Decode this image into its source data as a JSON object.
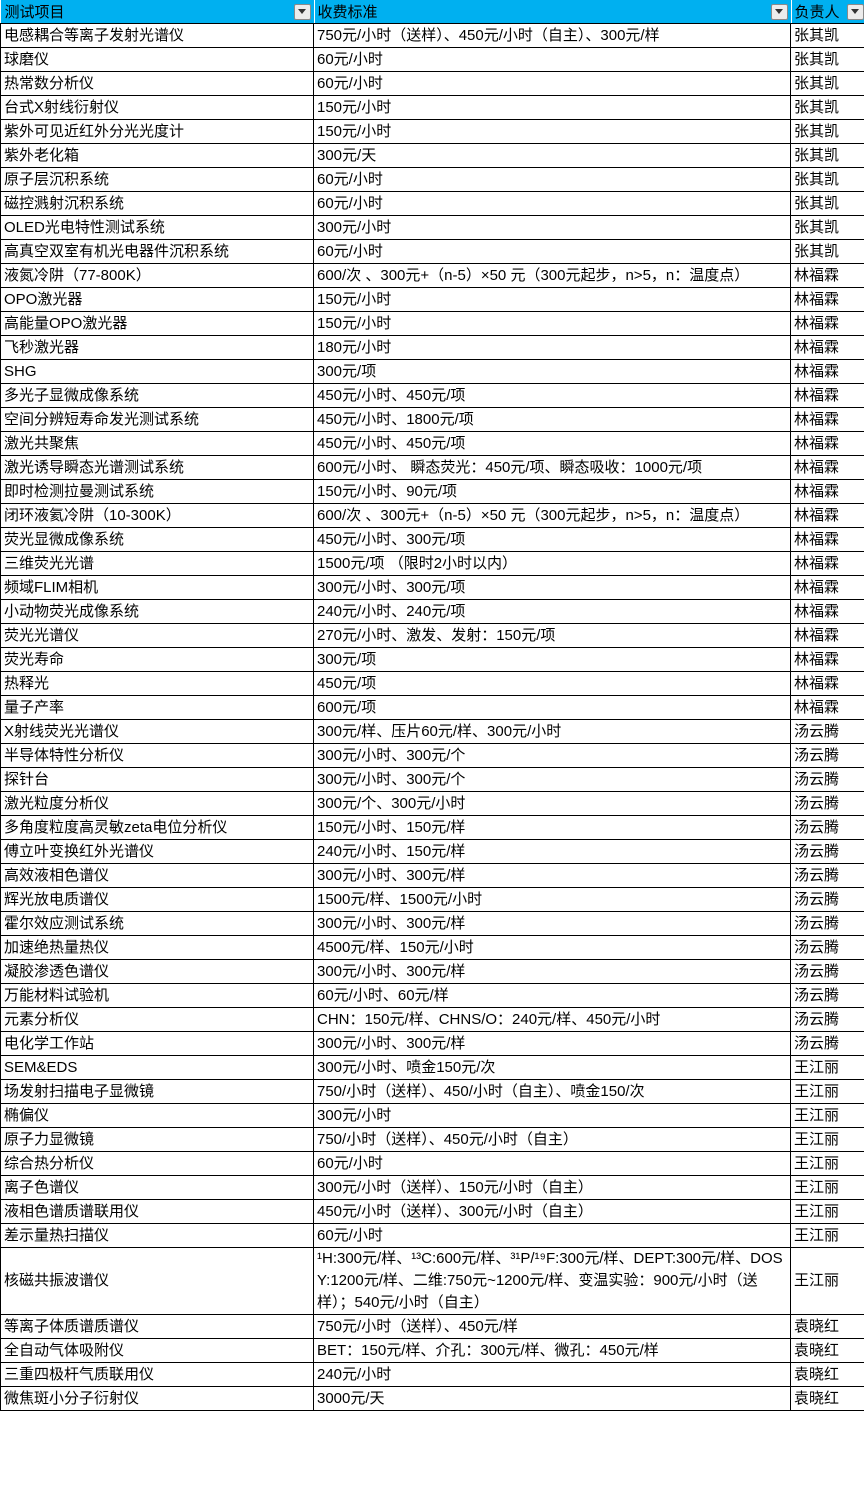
{
  "colors": {
    "header_bg": "#00B0F0",
    "grid_border": "#000000",
    "filter_button_bg": "#ECECEC",
    "filter_button_border": "#8A8A8A"
  },
  "header": {
    "columns": [
      {
        "label": "测试项目"
      },
      {
        "label": "收费标准"
      },
      {
        "label": "负责人"
      }
    ]
  },
  "table": {
    "rows": [
      {
        "item": "电感耦合等离子发射光谱仪",
        "fee": "750元/小时（送样）、450元/小时（自主）、300元/样",
        "owner": "张其凯"
      },
      {
        "item": "球磨仪",
        "fee": "60元/小时",
        "owner": "张其凯"
      },
      {
        "item": "热常数分析仪",
        "fee": "60元/小时",
        "owner": "张其凯"
      },
      {
        "item": "台式X射线衍射仪",
        "fee": "150元/小时",
        "owner": "张其凯"
      },
      {
        "item": "紫外可见近红外分光光度计",
        "fee": "150元/小时",
        "owner": "张其凯"
      },
      {
        "item": "紫外老化箱",
        "fee": "300元/天",
        "owner": "张其凯"
      },
      {
        "item": "原子层沉积系统",
        "fee": "60元/小时",
        "owner": "张其凯"
      },
      {
        "item": "磁控溅射沉积系统",
        "fee": "60元/小时",
        "owner": "张其凯"
      },
      {
        "item": "OLED光电特性测试系统",
        "fee": "300元/小时",
        "owner": "张其凯"
      },
      {
        "item": "高真空双室有机光电器件沉积系统",
        "fee": "60元/小时",
        "owner": "张其凯"
      },
      {
        "item": "液氮冷阱（77-800K）",
        "fee": "600/次 、300元+（n-5）×50 元（300元起步，n>5，n：温度点）",
        "owner": "林福霖"
      },
      {
        "item": "OPO激光器",
        "fee": "150元/小时",
        "owner": "林福霖"
      },
      {
        "item": "高能量OPO激光器",
        "fee": "150元/小时",
        "owner": "林福霖"
      },
      {
        "item": "飞秒激光器",
        "fee": "180元/小时",
        "owner": "林福霖"
      },
      {
        "item": "SHG",
        "fee": "300元/项",
        "owner": "林福霖"
      },
      {
        "item": "多光子显微成像系统",
        "fee": "450元/小时、450元/项",
        "owner": "林福霖"
      },
      {
        "item": "空间分辨短寿命发光测试系统",
        "fee": "450元/小时、1800元/项",
        "owner": "林福霖"
      },
      {
        "item": "激光共聚焦",
        "fee": "450元/小时、450元/项",
        "owner": "林福霖"
      },
      {
        "item": "激光诱导瞬态光谱测试系统",
        "fee": "600元/小时、 瞬态荧光：450元/项、瞬态吸收：1000元/项",
        "owner": "林福霖"
      },
      {
        "item": "即时检测拉曼测试系统",
        "fee": "150元/小时、90元/项",
        "owner": "林福霖"
      },
      {
        "item": "闭环液氦冷阱（10-300K）",
        "fee": "600/次 、300元+（n-5）×50 元（300元起步，n>5，n：温度点）",
        "owner": "林福霖"
      },
      {
        "item": "荧光显微成像系统",
        "fee": "450元/小时、300元/项",
        "owner": "林福霖"
      },
      {
        "item": "三维荧光光谱",
        "fee": "1500元/项 （限时2小时以内）",
        "owner": "林福霖"
      },
      {
        "item": "频域FLIM相机",
        "fee": "300元/小时、300元/项",
        "owner": "林福霖"
      },
      {
        "item": "小动物荧光成像系统",
        "fee": "240元/小时、240元/项",
        "owner": "林福霖"
      },
      {
        "item": "荧光光谱仪",
        "fee": "270元/小时、激发、发射：150元/项",
        "owner": "林福霖"
      },
      {
        "item": "荧光寿命",
        "fee": "300元/项",
        "owner": "林福霖"
      },
      {
        "item": "热释光",
        "fee": "450元/项",
        "owner": "林福霖"
      },
      {
        "item": "量子产率",
        "fee": "600元/项",
        "owner": "林福霖"
      },
      {
        "item": "X射线荧光光谱仪",
        "fee": "300元/样、压片60元/样、300元/小时",
        "owner": "汤云腾"
      },
      {
        "item": "半导体特性分析仪",
        "fee": "300元/小时、300元/个",
        "owner": "汤云腾"
      },
      {
        "item": "探针台",
        "fee": "300元/小时、300元/个",
        "owner": "汤云腾"
      },
      {
        "item": "激光粒度分析仪",
        "fee": "300元/个、300元/小时",
        "owner": "汤云腾"
      },
      {
        "item": "多角度粒度高灵敏zeta电位分析仪",
        "fee": "150元/小时、150元/样",
        "owner": "汤云腾"
      },
      {
        "item": "傅立叶变换红外光谱仪",
        "fee": "240元/小时、150元/样",
        "owner": "汤云腾"
      },
      {
        "item": "高效液相色谱仪",
        "fee": "300元/小时、300元/样",
        "owner": "汤云腾"
      },
      {
        "item": "辉光放电质谱仪",
        "fee": "1500元/样、1500元/小时",
        "owner": "汤云腾"
      },
      {
        "item": "霍尔效应测试系统",
        "fee": "300元/小时、300元/样",
        "owner": "汤云腾"
      },
      {
        "item": "加速绝热量热仪",
        "fee": "4500元/样、150元/小时",
        "owner": "汤云腾"
      },
      {
        "item": "凝胶渗透色谱仪",
        "fee": "300元/小时、300元/样",
        "owner": "汤云腾"
      },
      {
        "item": "万能材料试验机",
        "fee": "60元/小时、60元/样",
        "owner": "汤云腾"
      },
      {
        "item": "元素分析仪",
        "fee": "CHN：150元/样、CHNS/O：240元/样、450元/小时",
        "owner": "汤云腾"
      },
      {
        "item": "电化学工作站",
        "fee": "300元/小时、300元/样",
        "owner": "汤云腾"
      },
      {
        "item": "SEM&EDS",
        "fee": "300元/小时、喷金150元/次",
        "owner": "王江丽"
      },
      {
        "item": "场发射扫描电子显微镜",
        "fee": "750/小时（送样）、450/小时（自主）、喷金150/次",
        "owner": "王江丽"
      },
      {
        "item": "椭偏仪",
        "fee": "300元/小时",
        "owner": "王江丽"
      },
      {
        "item": "原子力显微镜",
        "fee": "750/小时（送样）、450元/小时（自主）",
        "owner": "王江丽"
      },
      {
        "item": "综合热分析仪",
        "fee": "60元/小时",
        "owner": "王江丽"
      },
      {
        "item": "离子色谱仪",
        "fee": "300元/小时（送样）、150元/小时（自主）",
        "owner": "王江丽"
      },
      {
        "item": "液相色谱质谱联用仪",
        "fee": "450元/小时（送样）、300元/小时（自主）",
        "owner": "王江丽"
      },
      {
        "item": "差示量热扫描仪",
        "fee": "60元/小时",
        "owner": "王江丽"
      },
      {
        "item": "核磁共振波谱仪",
        "fee": "¹H:300元/样、¹³C:600元/样、³¹P/¹⁹F:300元/样、DEPT:300元/样、DOSY:1200元/样、二维:750元~1200元/样、变温实验：900元/小时（送样）；540元/小时（自主）",
        "owner": "王江丽"
      },
      {
        "item": "等离子体质谱质谱仪",
        "fee": "750元/小时（送样）、450元/样",
        "owner": "袁晓红"
      },
      {
        "item": "全自动气体吸附仪",
        "fee": "BET：150元/样、介孔：300元/样、微孔：450元/样",
        "owner": "袁晓红"
      },
      {
        "item": "三重四极杆气质联用仪",
        "fee": "240元/小时",
        "owner": "袁晓红"
      },
      {
        "item": "微焦斑小分子衍射仪",
        "fee": "3000元/天",
        "owner": "袁晓红"
      }
    ]
  }
}
